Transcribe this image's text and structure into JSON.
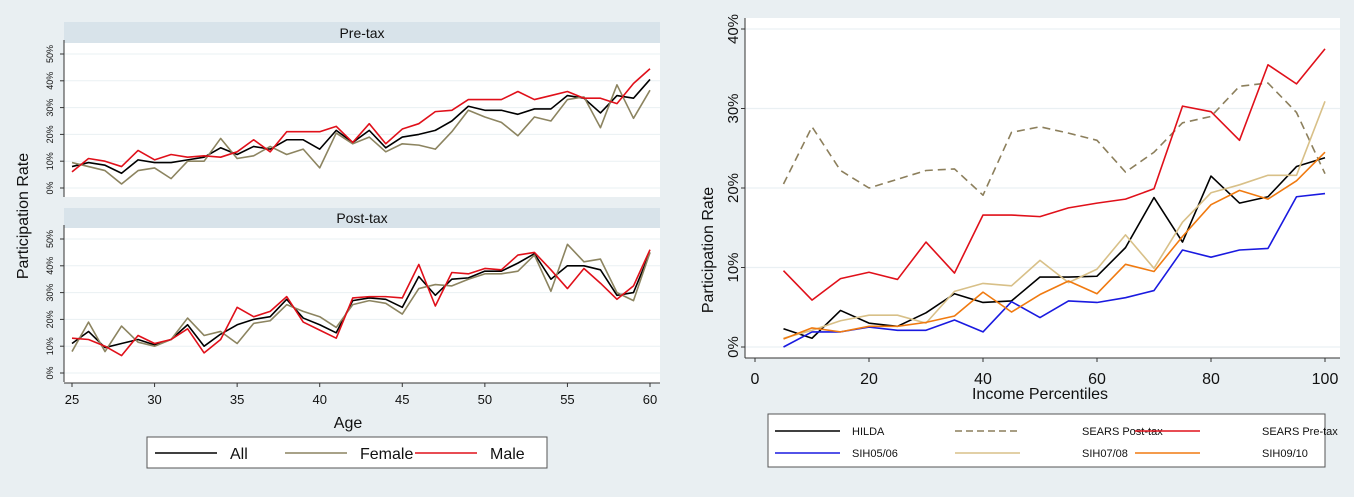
{
  "chart_data": [
    {
      "type": "line",
      "title": "",
      "xlabel": "Age",
      "ylabel": "Participation Rate",
      "xlim": [
        25,
        60
      ],
      "ylim": [
        0,
        50
      ],
      "xticks": [
        "25",
        "30",
        "35",
        "40",
        "45",
        "50",
        "55",
        "60"
      ],
      "yticks": [
        "0%",
        "10%",
        "20%",
        "30%",
        "40%",
        "50%"
      ],
      "grid": true,
      "legend_position": "bottom",
      "legend": [
        "All",
        "Female",
        "Male"
      ],
      "x": [
        25,
        26,
        27,
        28,
        29,
        30,
        31,
        32,
        33,
        34,
        35,
        36,
        37,
        38,
        39,
        40,
        41,
        42,
        43,
        44,
        45,
        46,
        47,
        48,
        49,
        50,
        51,
        52,
        53,
        54,
        55,
        56,
        57,
        58,
        59,
        60
      ],
      "panels": [
        {
          "title": "Pre-tax",
          "series": [
            {
              "name": "All",
              "color": "#000000",
              "values": [
                8,
                9.5,
                8.5,
                5.5,
                10.5,
                9.5,
                9.5,
                10.5,
                11.5,
                15,
                12.5,
                15.5,
                14.5,
                18,
                18,
                14.5,
                21.5,
                17,
                21.5,
                15,
                19,
                20,
                21.5,
                25,
                30.5,
                29,
                29,
                27.5,
                29.5,
                29.5,
                34.5,
                33.5,
                28,
                34.5,
                33.5,
                40.5
              ]
            },
            {
              "name": "Female",
              "color": "#8c8460",
              "values": [
                9.5,
                8,
                6.5,
                1.5,
                6.5,
                7.5,
                3.5,
                10,
                10,
                18.5,
                11,
                12,
                15.5,
                12.5,
                14.5,
                7.5,
                20.5,
                16.5,
                19,
                13.5,
                16.5,
                16,
                14.5,
                21,
                29,
                26.5,
                24.5,
                19.5,
                26.5,
                25,
                33,
                34,
                22.5,
                38.5,
                26,
                36.5
              ]
            },
            {
              "name": "Male",
              "color": "#e0101a",
              "values": [
                6,
                11,
                10,
                8,
                14,
                10.5,
                12.5,
                11.5,
                12,
                11.5,
                13.5,
                18,
                13.5,
                21,
                21,
                21,
                23,
                17,
                24,
                16.5,
                22,
                24,
                28.5,
                29,
                33,
                33,
                33,
                36,
                33,
                34.5,
                36,
                33.5,
                33.5,
                31.5,
                39,
                44.5
              ]
            }
          ]
        },
        {
          "title": "Post-tax",
          "series": [
            {
              "name": "All",
              "color": "#000000",
              "values": [
                11,
                15.5,
                9.5,
                11,
                12.5,
                10.5,
                12.5,
                18,
                10,
                14.5,
                18,
                20,
                21,
                27.5,
                20.5,
                18,
                15,
                27,
                28,
                27.5,
                24.5,
                36,
                29,
                35,
                35.5,
                38,
                38,
                41,
                44.5,
                35,
                40,
                40,
                38.5,
                29,
                30,
                45
              ]
            },
            {
              "name": "Female",
              "color": "#8c8460",
              "values": [
                8,
                19,
                8,
                17.5,
                11.5,
                10,
                12.5,
                20.5,
                14,
                15.5,
                11,
                18.5,
                19.5,
                25.5,
                23,
                21,
                17,
                25.5,
                27,
                26,
                22,
                31.5,
                33,
                32.5,
                35,
                37,
                37,
                38,
                44,
                30.5,
                48,
                41.5,
                42.5,
                30,
                27,
                45
              ]
            },
            {
              "name": "Male",
              "color": "#e0101a",
              "values": [
                13,
                12.5,
                10,
                6.5,
                14,
                11,
                12.5,
                16.5,
                7.5,
                12.5,
                24.5,
                21,
                23,
                28.5,
                19,
                16,
                13,
                28,
                28.5,
                28.5,
                28,
                40.5,
                25,
                37.5,
                37,
                39,
                38.5,
                44,
                45,
                38.5,
                31.5,
                39,
                33.5,
                27.5,
                32.5,
                46
              ]
            }
          ]
        }
      ]
    },
    {
      "type": "line",
      "title": "",
      "xlabel": "Income Percentiles",
      "ylabel": "Participation Rate",
      "xlim": [
        0,
        100
      ],
      "ylim": [
        0,
        40
      ],
      "xticks": [
        "0",
        "20",
        "40",
        "60",
        "80",
        "100"
      ],
      "yticks": [
        "0%",
        "10%",
        "20%",
        "30%",
        "40%"
      ],
      "grid": true,
      "legend_position": "bottom",
      "x": [
        5,
        10,
        15,
        20,
        25,
        30,
        35,
        40,
        45,
        50,
        55,
        60,
        65,
        70,
        75,
        80,
        85,
        90,
        95,
        100
      ],
      "series": [
        {
          "name": "HILDA",
          "color": "#000000",
          "dashed": false,
          "values": [
            2.3,
            1.1,
            4.6,
            3,
            2.6,
            4.3,
            6.7,
            5.6,
            5.8,
            8.8,
            8.8,
            8.9,
            12.5,
            18.8,
            13.2,
            21.5,
            18.1,
            18.9,
            22.7,
            23.8
          ]
        },
        {
          "name": "SEARS Post-tax",
          "color": "#8c7f5c",
          "dashed": true,
          "values": [
            20.5,
            27.7,
            22.2,
            20,
            21.1,
            22.2,
            22.4,
            19.1,
            27,
            27.7,
            26.9,
            26,
            22,
            24.5,
            28.2,
            29,
            32.8,
            33.2,
            29.5,
            21.8
          ]
        },
        {
          "name": "SEARS Pre-tax",
          "color": "#e0101a",
          "dashed": false,
          "values": [
            9.6,
            5.9,
            8.6,
            9.4,
            8.5,
            13.2,
            9.3,
            16.6,
            16.6,
            16.4,
            17.5,
            18.1,
            18.6,
            19.9,
            30.3,
            29.6,
            26,
            35.5,
            33.1,
            37.5
          ]
        },
        {
          "name": "SIH05/06",
          "color": "#1a1ae0",
          "dashed": false,
          "values": [
            0,
            1.9,
            1.9,
            2.5,
            2.1,
            2.1,
            3.4,
            1.9,
            5.7,
            3.7,
            5.8,
            5.6,
            6.2,
            7.1,
            12.2,
            11.3,
            12.2,
            12.4,
            18.9,
            19.3
          ]
        },
        {
          "name": "SIH07/08",
          "color": "#d8c088",
          "dashed": false,
          "values": [
            1.1,
            2.1,
            3.3,
            4,
            4,
            3,
            7,
            8,
            7.7,
            10.9,
            8.1,
            9.8,
            14.1,
            9.9,
            15.7,
            19.4,
            20.4,
            21.6,
            21.6,
            30.9
          ]
        },
        {
          "name": "SIH09/10",
          "color": "#f07a10",
          "dashed": false,
          "values": [
            1,
            2.4,
            1.9,
            2.6,
            2.6,
            3.1,
            3.9,
            6.9,
            4.4,
            6.6,
            8.3,
            6.7,
            10.4,
            9.5,
            13.9,
            17.9,
            19.7,
            18.6,
            20.9,
            24.5
          ]
        }
      ]
    }
  ]
}
